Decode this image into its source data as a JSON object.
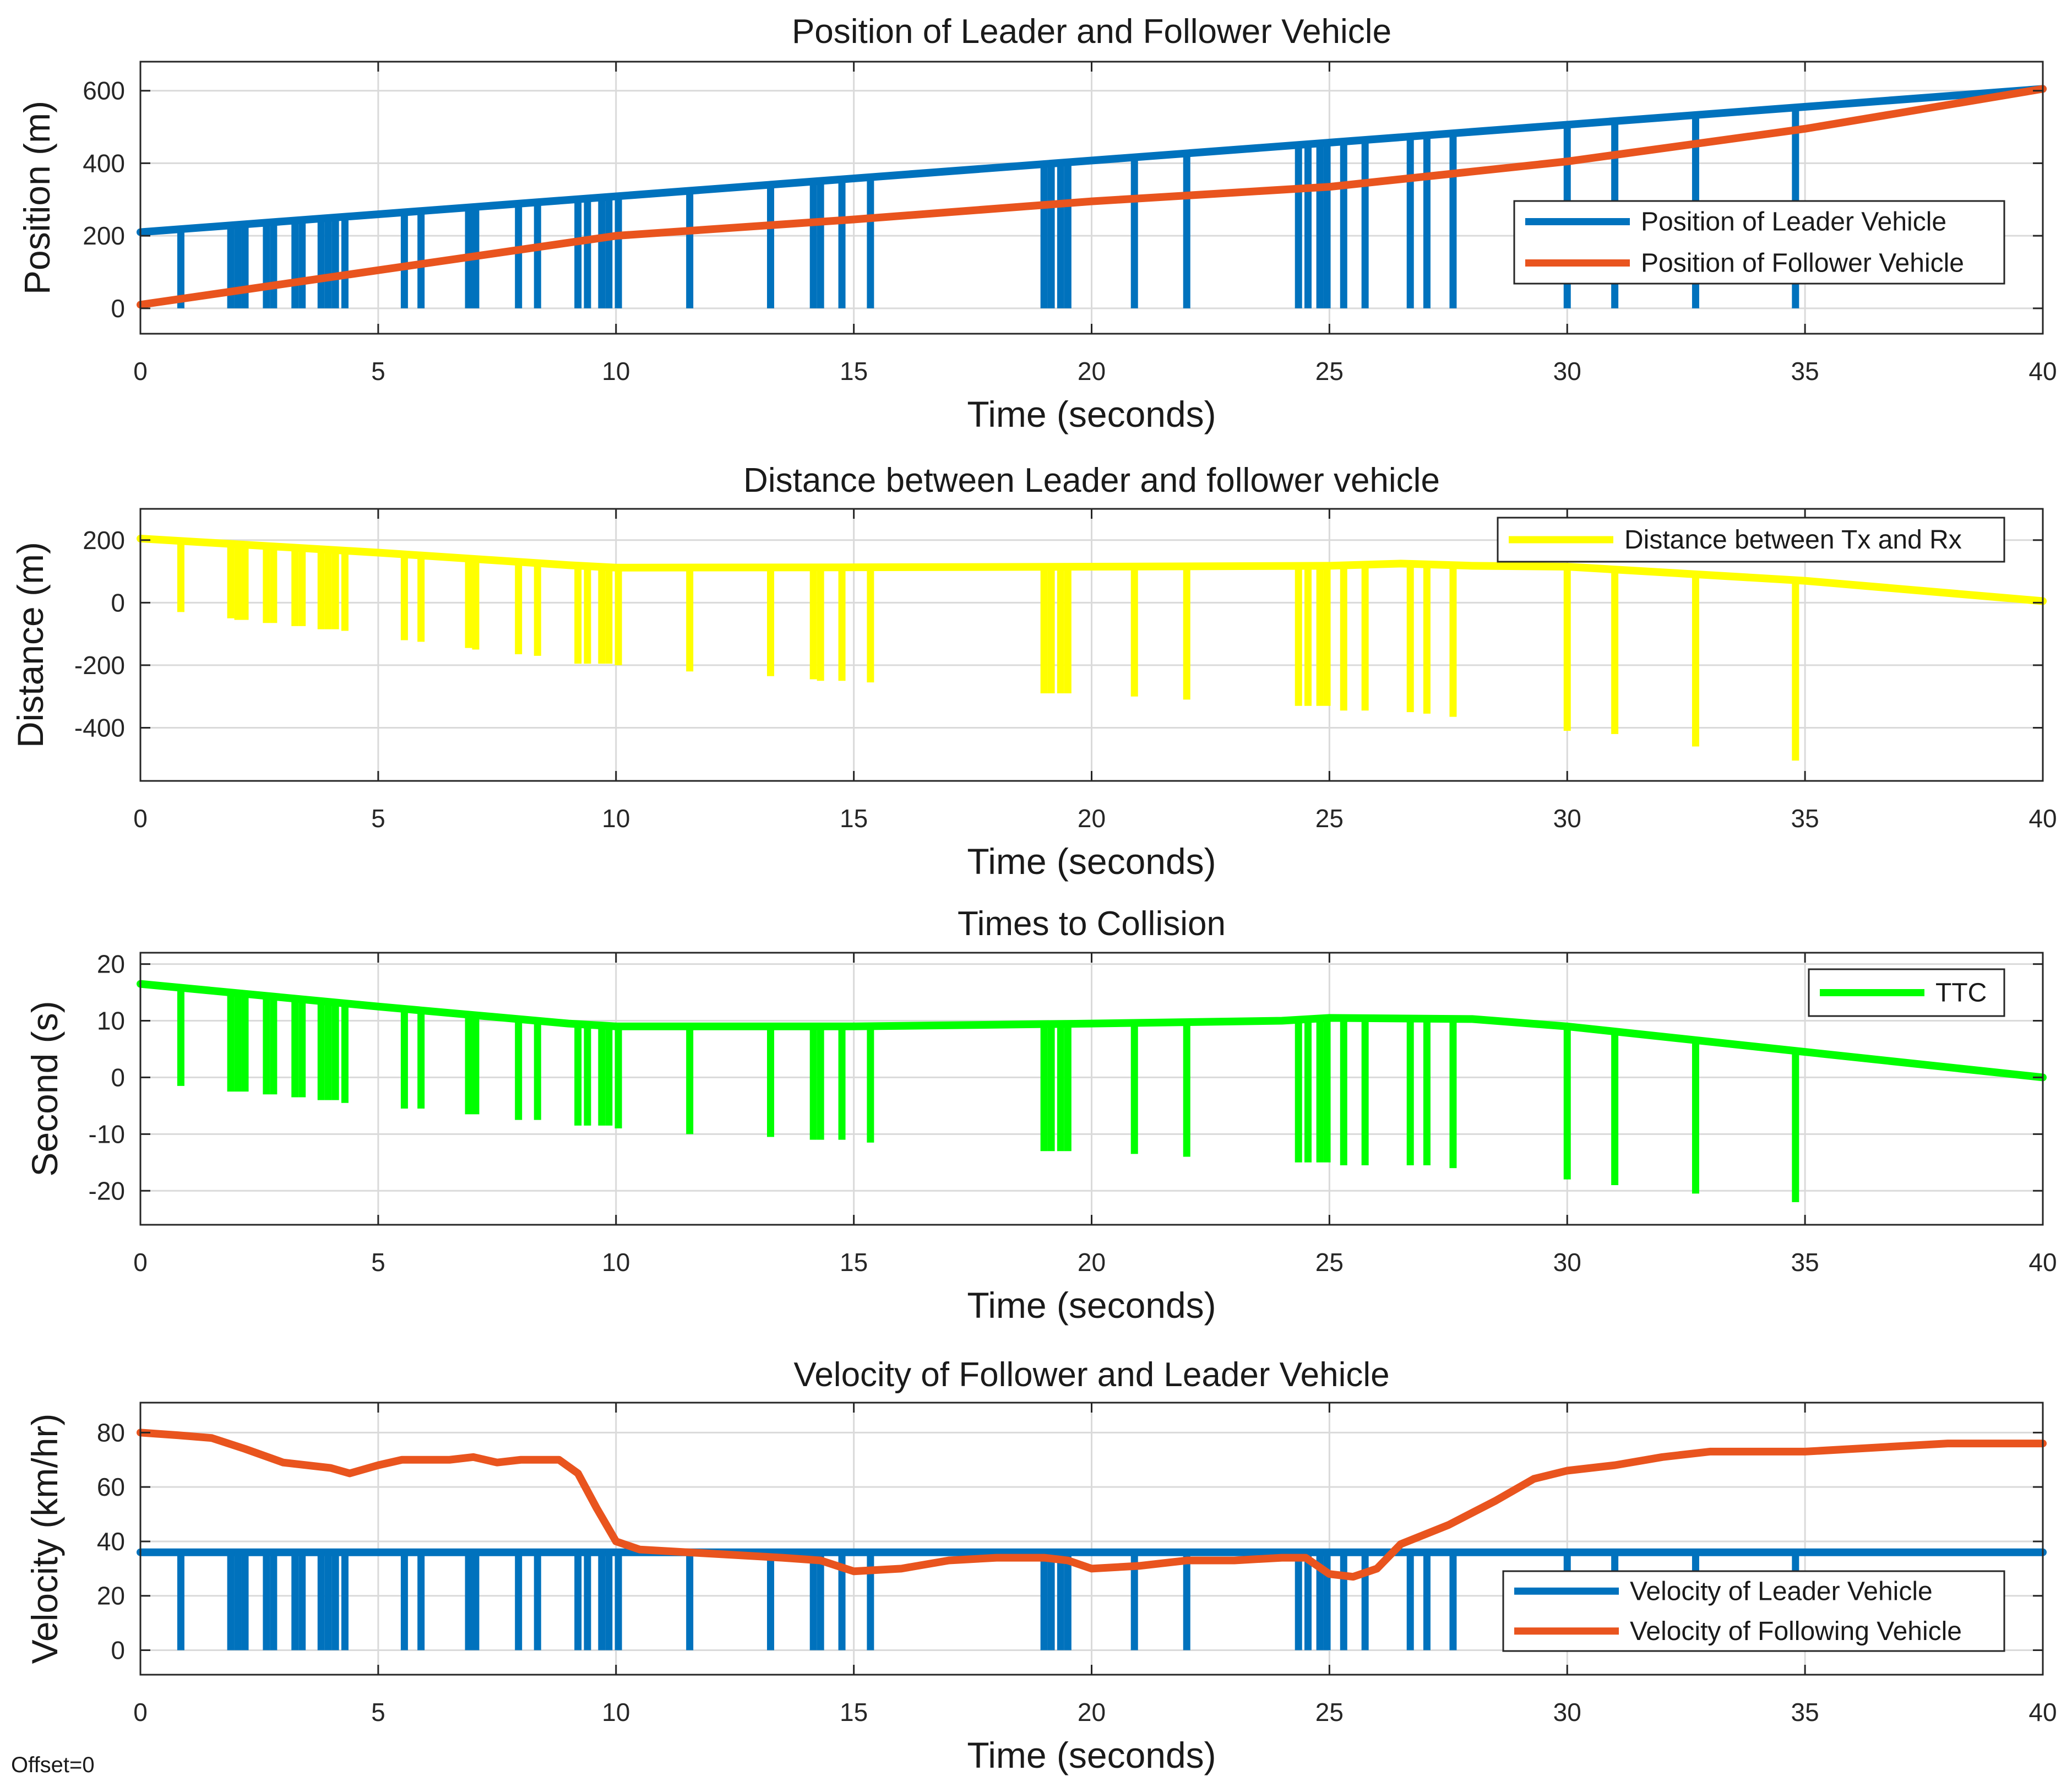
{
  "figure": {
    "footer": "Offset=0",
    "colors": {
      "blue": "#0072BD",
      "orange": "#E9541E",
      "yellow": "#FFFF00",
      "green": "#00FF00",
      "grid": "#DADADA",
      "axes": "#262626"
    }
  },
  "chart_data": [
    {
      "id": "position",
      "type": "line",
      "title": "Position of Leader and Follower Vehicle",
      "xlabel": "Time (seconds)",
      "ylabel": "Position (m)",
      "xlim": [
        0,
        40
      ],
      "ylim": [
        -70,
        680
      ],
      "xticks": [
        0,
        5,
        10,
        15,
        20,
        25,
        30,
        35,
        40
      ],
      "yticks": [
        0,
        200,
        400,
        600
      ],
      "grid": true,
      "legend_position": "right",
      "series": [
        {
          "name": "Position of Leader Vehicle",
          "color": "#0072BD",
          "x": [
            0,
            40
          ],
          "y": [
            210,
            605
          ],
          "dropouts": [
            0.85,
            1.9,
            2.05,
            2.2,
            2.65,
            2.8,
            3.25,
            3.4,
            3.8,
            3.95,
            4.1,
            4.3,
            5.55,
            5.9,
            6.9,
            7.05,
            7.95,
            8.35,
            9.2,
            9.4,
            9.7,
            9.85,
            10.05,
            11.55,
            13.25,
            14.15,
            14.3,
            14.75,
            15.35,
            19.0,
            19.15,
            19.35,
            19.5,
            20.9,
            22.0,
            24.35,
            24.55,
            24.8,
            24.95,
            25.3,
            25.75,
            26.7,
            27.05,
            27.6,
            30.0,
            31.0,
            32.7,
            34.8
          ],
          "dropout_value": 0
        },
        {
          "name": "Position of Follower Vehicle",
          "color": "#E9541E",
          "x": [
            0,
            5,
            10,
            15,
            20,
            25,
            30,
            35,
            40
          ],
          "y": [
            10,
            105,
            200,
            245,
            295,
            335,
            405,
            495,
            605
          ]
        }
      ]
    },
    {
      "id": "distance",
      "type": "line",
      "title": "Distance between Leader and follower vehicle",
      "xlabel": "Time (seconds)",
      "ylabel": "Distance (m)",
      "xlim": [
        0,
        40
      ],
      "ylim": [
        -570,
        300
      ],
      "xticks": [
        0,
        5,
        10,
        15,
        20,
        25,
        30,
        35,
        40
      ],
      "yticks": [
        -400,
        -200,
        0,
        200
      ],
      "grid": true,
      "legend_position": "top-right",
      "series": [
        {
          "name": "Distance between Tx and Rx",
          "color": "#FFFF00",
          "x": [
            0,
            5,
            9,
            10,
            15,
            20,
            25,
            26.5,
            28,
            30,
            35,
            40
          ],
          "y": [
            205,
            160,
            120,
            112,
            113,
            115,
            118,
            125,
            118,
            115,
            70,
            5
          ],
          "dropouts": [
            0.85,
            1.9,
            2.05,
            2.2,
            2.65,
            2.8,
            3.25,
            3.4,
            3.8,
            3.95,
            4.1,
            4.3,
            5.55,
            5.9,
            6.9,
            7.05,
            7.95,
            8.35,
            9.2,
            9.4,
            9.7,
            9.85,
            10.05,
            11.55,
            13.25,
            14.15,
            14.3,
            14.75,
            15.35,
            19.0,
            19.15,
            19.35,
            19.5,
            20.9,
            22.0,
            24.35,
            24.55,
            24.8,
            24.95,
            25.3,
            25.75,
            26.7,
            27.05,
            27.6,
            30.0,
            31.0,
            32.7,
            34.8
          ],
          "dropout_values": [
            -30,
            -50,
            -55,
            -55,
            -65,
            -65,
            -75,
            -75,
            -85,
            -85,
            -85,
            -90,
            -120,
            -125,
            -145,
            -150,
            -165,
            -170,
            -195,
            -195,
            -195,
            -195,
            -200,
            -220,
            -235,
            -245,
            -250,
            -250,
            -255,
            -290,
            -290,
            -290,
            -290,
            -300,
            -310,
            -330,
            -330,
            -330,
            -330,
            -345,
            -345,
            -350,
            -355,
            -365,
            -410,
            -420,
            -460,
            -505
          ]
        }
      ]
    },
    {
      "id": "ttc",
      "type": "line",
      "title": "Times to Collision",
      "xlabel": "Time (seconds)",
      "ylabel": "Second (s)",
      "xlim": [
        0,
        40
      ],
      "ylim": [
        -26,
        22
      ],
      "xticks": [
        0,
        5,
        10,
        15,
        20,
        25,
        30,
        35,
        40
      ],
      "yticks": [
        -20,
        -10,
        0,
        10,
        20
      ],
      "grid": true,
      "legend_position": "top-right",
      "series": [
        {
          "name": "TTC",
          "color": "#00FF00",
          "x": [
            0,
            5,
            9,
            10,
            15,
            20,
            24,
            25,
            28,
            30,
            35,
            40
          ],
          "y": [
            16.5,
            12.5,
            9.5,
            9,
            9,
            9.5,
            10,
            10.5,
            10.3,
            9,
            4.5,
            0
          ],
          "dropouts": [
            0.85,
            1.9,
            2.05,
            2.2,
            2.65,
            2.8,
            3.25,
            3.4,
            3.8,
            3.95,
            4.1,
            4.3,
            5.55,
            5.9,
            6.9,
            7.05,
            7.95,
            8.35,
            9.2,
            9.4,
            9.7,
            9.85,
            10.05,
            11.55,
            13.25,
            14.15,
            14.3,
            14.75,
            15.35,
            19.0,
            19.15,
            19.35,
            19.5,
            20.9,
            22.0,
            24.35,
            24.55,
            24.8,
            24.95,
            25.3,
            25.75,
            26.7,
            27.05,
            27.6,
            30.0,
            31.0,
            32.7,
            34.8
          ],
          "dropout_values": [
            -1.5,
            -2.5,
            -2.5,
            -2.5,
            -3,
            -3,
            -3.5,
            -3.5,
            -4,
            -4,
            -4,
            -4.5,
            -5.5,
            -5.5,
            -6.5,
            -6.5,
            -7.5,
            -7.5,
            -8.5,
            -8.5,
            -8.5,
            -8.5,
            -9,
            -10,
            -10.5,
            -11,
            -11,
            -11,
            -11.5,
            -13,
            -13,
            -13,
            -13,
            -13.5,
            -14,
            -15,
            -15,
            -15,
            -15,
            -15.5,
            -15.5,
            -15.5,
            -15.5,
            -16,
            -18,
            -19,
            -20.5,
            -22
          ]
        }
      ]
    },
    {
      "id": "velocity",
      "type": "line",
      "title": "Velocity of Follower and Leader Vehicle",
      "xlabel": "Time (seconds)",
      "ylabel": "Velocity (km/hr)",
      "xlim": [
        0,
        40
      ],
      "ylim": [
        -9,
        91
      ],
      "xticks": [
        0,
        5,
        10,
        15,
        20,
        25,
        30,
        35,
        40
      ],
      "yticks": [
        0,
        20,
        40,
        60,
        80
      ],
      "grid": true,
      "legend_position": "bottom-right",
      "series": [
        {
          "name": "Velocity of Leader Vehicle",
          "color": "#0072BD",
          "x": [
            0,
            40
          ],
          "y": [
            36,
            36
          ],
          "dropouts": [
            0.85,
            1.9,
            2.05,
            2.2,
            2.65,
            2.8,
            3.25,
            3.4,
            3.8,
            3.95,
            4.1,
            4.3,
            5.55,
            5.9,
            6.9,
            7.05,
            7.95,
            8.35,
            9.2,
            9.4,
            9.7,
            9.85,
            10.05,
            11.55,
            13.25,
            14.15,
            14.3,
            14.75,
            15.35,
            19.0,
            19.15,
            19.35,
            19.5,
            20.9,
            22.0,
            24.35,
            24.55,
            24.8,
            24.95,
            25.3,
            25.75,
            26.7,
            27.05,
            27.6,
            30.0,
            31.0,
            32.7,
            34.8
          ],
          "dropout_value": 0
        },
        {
          "name": "Velocity of Following Vehicle",
          "color": "#E9541E",
          "x": [
            0,
            0.8,
            1.5,
            2.2,
            3,
            4,
            4.4,
            5,
            5.5,
            6.5,
            7,
            7.5,
            8,
            8.8,
            9.2,
            9.6,
            10,
            10.5,
            11.5,
            12.5,
            13.5,
            14.3,
            15,
            16,
            17,
            18,
            19,
            19.5,
            20,
            21,
            22,
            23,
            24,
            24.5,
            25,
            25.5,
            26,
            26.5,
            27.5,
            28.5,
            29.3,
            30,
            31,
            32,
            33,
            34,
            35,
            36,
            38,
            40
          ],
          "y": [
            80,
            79,
            78,
            74,
            69,
            67,
            65,
            68,
            70,
            70,
            71,
            69,
            70,
            70,
            65,
            52,
            40,
            37,
            36,
            35,
            34,
            33,
            29,
            30,
            33,
            34,
            34,
            33,
            30,
            31,
            33,
            33,
            34,
            34,
            28,
            27,
            30,
            39,
            46,
            55,
            63,
            66,
            68,
            71,
            73,
            73,
            73,
            74,
            76,
            76
          ]
        }
      ]
    }
  ]
}
